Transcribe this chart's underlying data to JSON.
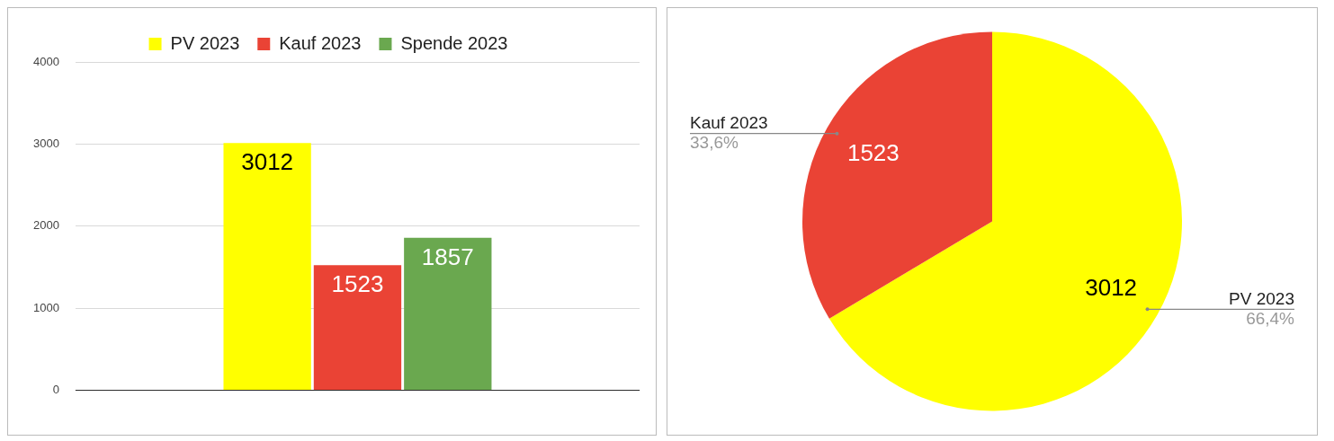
{
  "chart_data": [
    {
      "type": "bar",
      "categories": [
        null
      ],
      "series": [
        {
          "name": "PV 2023",
          "color": "#ffff00",
          "values": [
            3012
          ]
        },
        {
          "name": "Kauf 2023",
          "color": "#ea4335",
          "values": [
            1523
          ]
        },
        {
          "name": "Spende 2023",
          "color": "#6aa84f",
          "values": [
            1857
          ]
        }
      ],
      "ylim": [
        0,
        4000
      ],
      "yticks": [
        0,
        1000,
        2000,
        3000,
        4000
      ],
      "grid": "y",
      "legend": "top",
      "data_labels": true
    },
    {
      "type": "pie",
      "categories": [
        "PV 2023",
        "Kauf 2023"
      ],
      "values": [
        3012,
        1523
      ],
      "colors": [
        "#ffff00",
        "#ea4335"
      ],
      "value_labels": [
        "3012",
        "1523"
      ],
      "annotations": [
        "66,4%",
        "33,6%"
      ],
      "legend": false
    }
  ]
}
